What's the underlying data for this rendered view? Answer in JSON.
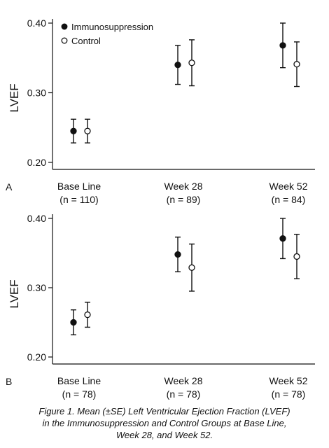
{
  "legend": {
    "placement": "top-left"
  },
  "chart_data": [
    {
      "panel_label": "A",
      "type": "scatter",
      "ylabel": "LVEF",
      "ylim": [
        0.2,
        0.4
      ],
      "yticks": [
        "0.20",
        "0.30",
        "0.40"
      ],
      "categories": [
        "Base Line",
        "Week 28",
        "Week 52"
      ],
      "category_n": [
        "(n = 110)",
        "(n = 89)",
        "(n = 84)"
      ],
      "grid": false,
      "series": [
        {
          "name": "Immunosuppression",
          "marker": "filled",
          "values": [
            0.245,
            0.34,
            0.368
          ],
          "se": [
            0.017,
            0.028,
            0.032
          ]
        },
        {
          "name": "Control",
          "marker": "open",
          "values": [
            0.245,
            0.343,
            0.341
          ],
          "se": [
            0.017,
            0.033,
            0.032
          ]
        }
      ]
    },
    {
      "panel_label": "B",
      "type": "scatter",
      "ylabel": "LVEF",
      "ylim": [
        0.2,
        0.4
      ],
      "yticks": [
        "0.20",
        "0.30",
        "0.40"
      ],
      "categories": [
        "Base Line",
        "Week 28",
        "Week 52"
      ],
      "category_n": [
        "(n = 78)",
        "(n = 78)",
        "(n = 78)"
      ],
      "grid": false,
      "series": [
        {
          "name": "Immunosuppression",
          "marker": "filled",
          "values": [
            0.25,
            0.348,
            0.371
          ],
          "se": [
            0.018,
            0.025,
            0.029
          ]
        },
        {
          "name": "Control",
          "marker": "open",
          "values": [
            0.261,
            0.329,
            0.345
          ],
          "se": [
            0.018,
            0.034,
            0.032
          ]
        }
      ]
    }
  ],
  "caption": {
    "line1": "Figure 1. Mean (±SE) Left Ventricular Ejection Fraction (LVEF)",
    "line2": "in the Immunosuppression and Control Groups at Base Line,",
    "line3": "Week 28, and Week 52."
  }
}
